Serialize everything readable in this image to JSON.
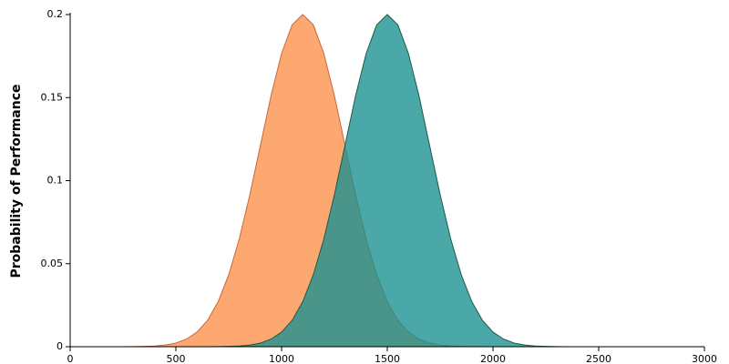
{
  "chart_data": {
    "type": "area",
    "y_label": "Probability of Performance",
    "x": [
      0,
      50,
      100,
      150,
      200,
      250,
      300,
      350,
      400,
      450,
      500,
      550,
      600,
      650,
      700,
      750,
      800,
      850,
      900,
      950,
      1000,
      1050,
      1100,
      1150,
      1200,
      1250,
      1300,
      1350,
      1400,
      1450,
      1500,
      1550,
      1600,
      1650,
      1700,
      1750,
      1800,
      1850,
      1900,
      1950,
      2000,
      2050,
      2100,
      2150,
      2200,
      2250,
      2300,
      2350,
      2400,
      2450,
      2500,
      2550,
      2600,
      2650,
      2700,
      2750,
      2800,
      2850,
      2900,
      2950,
      3000
    ],
    "series": [
      {
        "color": "#fd9f62",
        "stroke": "#c8683a",
        "opacity": 0.9,
        "values": [
          0,
          0,
          0,
          0,
          0,
          0,
          0.0001,
          0.0002,
          0.0004,
          0.001,
          0.0022,
          0.0046,
          0.0088,
          0.0159,
          0.0271,
          0.0433,
          0.0649,
          0.0916,
          0.1213,
          0.151,
          0.1765,
          0.1938,
          0.2,
          0.1938,
          0.1765,
          0.151,
          0.1213,
          0.0916,
          0.0649,
          0.0433,
          0.0271,
          0.0159,
          0.0088,
          0.0046,
          0.0022,
          0.001,
          0.0004,
          0.0002,
          0.0001,
          0,
          0,
          0,
          0,
          0,
          0,
          0,
          0,
          0,
          0,
          0,
          0,
          0,
          0,
          0,
          0,
          0,
          0,
          0,
          0,
          0,
          0
        ]
      },
      {
        "color": "#17908f",
        "stroke": "#1d5b4a",
        "opacity": 0.78,
        "values": [
          0,
          0,
          0,
          0,
          0,
          0,
          0,
          0,
          0,
          0,
          0,
          0,
          0,
          0,
          0.0001,
          0.0002,
          0.0004,
          0.001,
          0.0022,
          0.0046,
          0.0088,
          0.0159,
          0.0271,
          0.0433,
          0.0649,
          0.0916,
          0.1213,
          0.151,
          0.1765,
          0.1938,
          0.2,
          0.1938,
          0.1765,
          0.151,
          0.1213,
          0.0916,
          0.0649,
          0.0433,
          0.0271,
          0.0159,
          0.0088,
          0.0046,
          0.0022,
          0.001,
          0.0004,
          0.0002,
          0.0001,
          0,
          0,
          0,
          0,
          0,
          0,
          0,
          0,
          0,
          0,
          0,
          0,
          0,
          0
        ]
      }
    ],
    "xlim": [
      0,
      3000
    ],
    "xticks": [
      0,
      500,
      1000,
      1500,
      2000,
      2500,
      3000
    ],
    "ylim": [
      0,
      0.2
    ],
    "yticks": [
      0,
      0.05,
      0.1,
      0.15,
      0.2
    ]
  }
}
